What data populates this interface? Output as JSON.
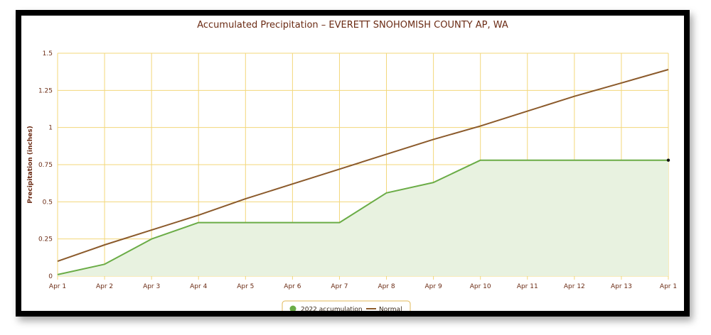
{
  "chart_data": {
    "type": "area",
    "title": "Accumulated Precipitation – EVERETT SNOHOMISH COUNTY AP, WA",
    "xlabel": "",
    "ylabel": "Precipitation (inches)",
    "ylim": [
      0,
      1.5
    ],
    "y_ticks": [
      "0",
      "0.25",
      "0.5",
      "0.75",
      "1",
      "1.25",
      "1.5"
    ],
    "categories": [
      "Apr 1",
      "Apr 2",
      "Apr 3",
      "Apr 4",
      "Apr 5",
      "Apr 6",
      "Apr 7",
      "Apr 8",
      "Apr 9",
      "Apr 10",
      "Apr 11",
      "Apr 12",
      "Apr 13",
      "Apr 1"
    ],
    "grid": true,
    "legend_position": "bottom",
    "series": [
      {
        "name": "2022 accumulation",
        "kind": "area",
        "color": "#6aac46",
        "fill": "#e8f2e0",
        "values": [
          0.01,
          0.08,
          0.25,
          0.36,
          0.36,
          0.36,
          0.36,
          0.56,
          0.63,
          0.78,
          0.78,
          0.78,
          0.78,
          0.78
        ]
      },
      {
        "name": "Normal",
        "kind": "line",
        "color": "#8b5a2b",
        "values": [
          0.1,
          0.21,
          0.31,
          0.41,
          0.52,
          0.62,
          0.72,
          0.82,
          0.92,
          1.01,
          1.11,
          1.21,
          1.3,
          1.39
        ]
      }
    ]
  },
  "colors": {
    "grid": "#f3d77a",
    "axis_text": "#6b2b14",
    "frame": "#000000"
  }
}
